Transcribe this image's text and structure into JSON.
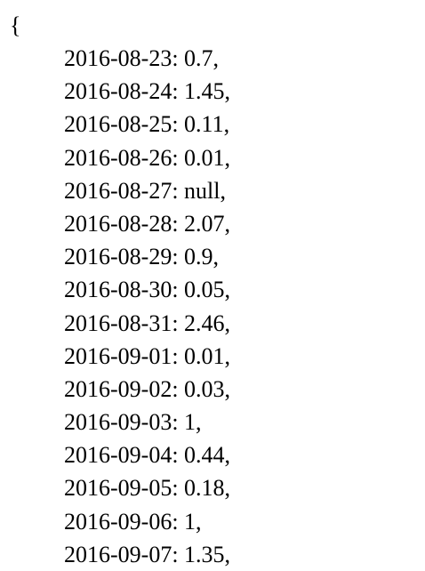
{
  "document": {
    "open_brace": "{",
    "entries": [
      "2016-08-23: 0.7,",
      "2016-08-24: 1.45,",
      "2016-08-25: 0.11,",
      "2016-08-26: 0.01,",
      "2016-08-27: null,",
      "2016-08-28: 2.07,",
      "2016-08-29: 0.9,",
      "2016-08-30: 0.05,",
      "2016-08-31: 2.46,",
      "2016-09-01: 0.01,",
      "2016-09-02: 0.03,",
      "2016-09-03: 1,",
      "2016-09-04: 0.44,",
      "2016-09-05: 0.18,",
      "2016-09-06: 1,",
      "2016-09-07: 1.35,"
    ]
  }
}
